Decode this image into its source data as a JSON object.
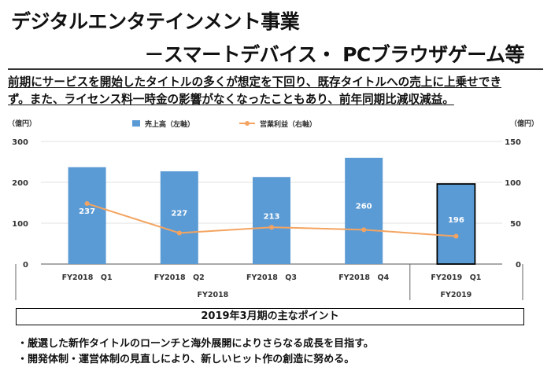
{
  "slide": {
    "title_line1": "デジタルエンタテインメント事業",
    "title_line2": "－スマートデバイス・ PCブラウザゲーム等",
    "summary_line1": "前期にサービスを開始したタイトルの多くが想定を下回り、既存タイトルへの売上に上乗せでき",
    "summary_line2": "ず。また、ライセンス料一時金の影響がなくなったこともあり、前年同期比減収減益。",
    "points_header": "2019年3月期の主なポイント",
    "bullets": [
      "・厳選した新作タイトルのローンチと海外展開によりさらなる成長を目指す。",
      "・開発体制・運営体制の見直しにより、新しいヒット作の創造に努める。"
    ]
  },
  "chart_data": {
    "type": "bar",
    "categories": [
      "FY2018　Q1",
      "FY2018　Q2",
      "FY2018　Q3",
      "FY2018　Q4",
      "FY2019　Q1"
    ],
    "groups": [
      {
        "label": "FY2018",
        "count": 4
      },
      {
        "label": "FY2019",
        "count": 1
      }
    ],
    "series": [
      {
        "name": "売上高（左軸）",
        "type": "bar",
        "axis": "left",
        "values": [
          237,
          227,
          213,
          260,
          196
        ],
        "color": "#5b9bd5"
      },
      {
        "name": "営業利益（右軸）",
        "type": "line",
        "axis": "right",
        "values": [
          74,
          38,
          45,
          42,
          34
        ],
        "color": "#f4a460"
      }
    ],
    "y_left": {
      "label": "（億円）",
      "ticks": [
        0,
        100,
        200,
        300
      ],
      "range": [
        0,
        300
      ]
    },
    "y_right": {
      "label": "（億円）",
      "ticks": [
        0,
        50,
        100,
        150
      ],
      "range": [
        0,
        150
      ]
    },
    "highlight_index": 4
  }
}
